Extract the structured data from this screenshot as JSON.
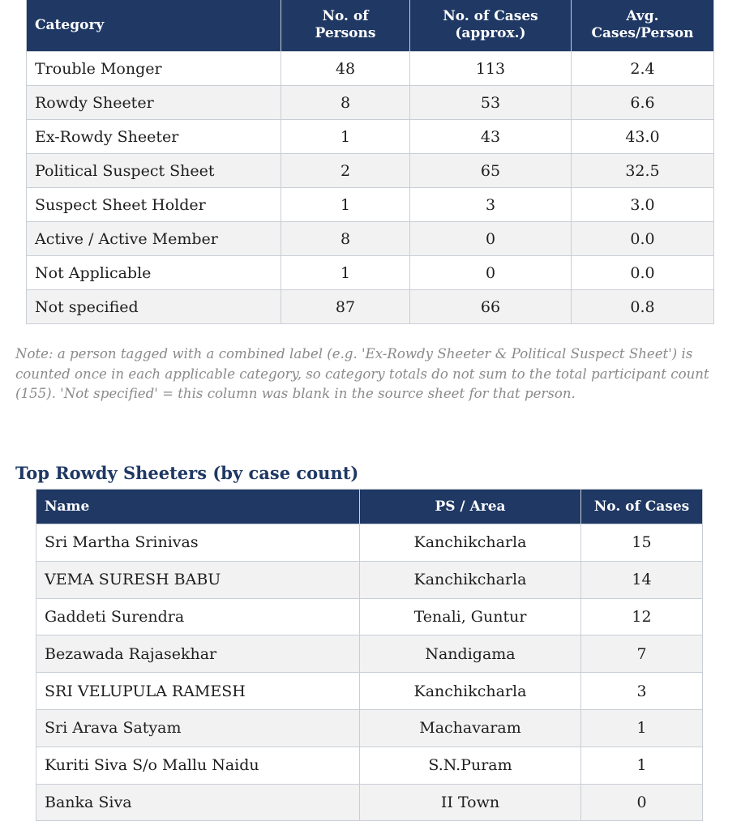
{
  "category_table": {
    "headers": [
      "Category",
      "No. of Persons",
      "No. of Cases (approx.)",
      "Avg. Cases/Person"
    ],
    "header_lines": [
      [
        "Category"
      ],
      [
        "No. of",
        "Persons"
      ],
      [
        "No. of Cases",
        "(approx.)"
      ],
      [
        "Avg.",
        "Cases/Person"
      ]
    ],
    "rows": [
      [
        "Trouble Monger",
        "48",
        "113",
        "2.4"
      ],
      [
        "Rowdy Sheeter",
        "8",
        "53",
        "6.6"
      ],
      [
        "Ex-Rowdy Sheeter",
        "1",
        "43",
        "43.0"
      ],
      [
        "Political Suspect Sheet",
        "2",
        "65",
        "32.5"
      ],
      [
        "Suspect Sheet Holder",
        "1",
        "3",
        "3.0"
      ],
      [
        "Active / Active Member",
        "8",
        "0",
        "0.0"
      ],
      [
        "Not Applicable",
        "1",
        "0",
        "0.0"
      ],
      [
        "Not specified",
        "87",
        "66",
        "0.8"
      ]
    ]
  },
  "note": "Note: a person tagged with a combined label (e.g. 'Ex-Rowdy Sheeter & Political Suspect Sheet') is counted once in each applicable category, so category totals do not sum to the total participant count (155). 'Not specified' = this column was blank in the source sheet for that person.",
  "rowdy_section": {
    "title": "Top Rowdy Sheeters (by case count)",
    "headers": [
      "Name",
      "PS / Area",
      "No. of Cases"
    ],
    "rows": [
      [
        "Sri Martha Srinivas",
        "Kanchikcharla",
        "15"
      ],
      [
        "VEMA SURESH BABU",
        "Kanchikcharla",
        "14"
      ],
      [
        "Gaddeti Surendra",
        "Tenali, Guntur",
        "12"
      ],
      [
        "Bezawada Rajasekhar",
        "Nandigama",
        "7"
      ],
      [
        "SRI VELUPULA RAMESH",
        "Kanchikcharla",
        "3"
      ],
      [
        "Sri Arava Satyam",
        "Machavaram",
        "1"
      ],
      [
        "Kuriti Siva S/o Mallu Naidu",
        "S.N.Puram",
        "1"
      ],
      [
        "Banka Siva",
        "II Town",
        "0"
      ]
    ]
  },
  "colors": {
    "header_bg": "#1f3864",
    "header_text": "#ffffff",
    "stripe": "#f2f2f2",
    "note_text": "#8a8a8a",
    "title_text": "#1f3864"
  }
}
